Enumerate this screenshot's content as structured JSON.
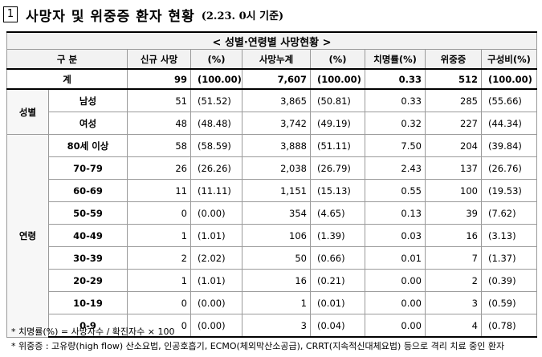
{
  "title": {
    "number": "1",
    "text": "사망자 및 위중증 환자 현황",
    "subtitle": "(2.23. 0시 기준)"
  },
  "table": {
    "caption": "< 성별·연령별 사망현황 >",
    "headers": [
      "구 분",
      "신규 사망",
      "(%)",
      "사망누계",
      "(%)",
      "치명률(%)",
      "위중증",
      "구성비(%)"
    ],
    "total": {
      "label": "계",
      "new_deaths": "99",
      "new_pct": "(100.00)",
      "cum_deaths": "7,607",
      "cum_pct": "(100.00)",
      "fatality": "0.33",
      "critical": "512",
      "composition": "(100.00)"
    },
    "groups": [
      {
        "category": "성별",
        "rows": [
          {
            "label": "남성",
            "new_deaths": "51",
            "new_pct": "(51.52)",
            "cum_deaths": "3,865",
            "cum_pct": "(50.81)",
            "fatality": "0.33",
            "critical": "285",
            "composition": "(55.66)"
          },
          {
            "label": "여성",
            "new_deaths": "48",
            "new_pct": "(48.48)",
            "cum_deaths": "3,742",
            "cum_pct": "(49.19)",
            "fatality": "0.32",
            "critical": "227",
            "composition": "(44.34)"
          }
        ]
      },
      {
        "category": "연령",
        "rows": [
          {
            "label": "80세 이상",
            "new_deaths": "58",
            "new_pct": "(58.59)",
            "cum_deaths": "3,888",
            "cum_pct": "(51.11)",
            "fatality": "7.50",
            "critical": "204",
            "composition": "(39.84)"
          },
          {
            "label": "70-79",
            "new_deaths": "26",
            "new_pct": "(26.26)",
            "cum_deaths": "2,038",
            "cum_pct": "(26.79)",
            "fatality": "2.43",
            "critical": "137",
            "composition": "(26.76)"
          },
          {
            "label": "60-69",
            "new_deaths": "11",
            "new_pct": "(11.11)",
            "cum_deaths": "1,151",
            "cum_pct": "(15.13)",
            "fatality": "0.55",
            "critical": "100",
            "composition": "(19.53)"
          },
          {
            "label": "50-59",
            "new_deaths": "0",
            "new_pct": "(0.00)",
            "cum_deaths": "354",
            "cum_pct": "(4.65)",
            "fatality": "0.13",
            "critical": "39",
            "composition": "(7.62)"
          },
          {
            "label": "40-49",
            "new_deaths": "1",
            "new_pct": "(1.01)",
            "cum_deaths": "106",
            "cum_pct": "(1.39)",
            "fatality": "0.03",
            "critical": "16",
            "composition": "(3.13)"
          },
          {
            "label": "30-39",
            "new_deaths": "2",
            "new_pct": "(2.02)",
            "cum_deaths": "50",
            "cum_pct": "(0.66)",
            "fatality": "0.01",
            "critical": "7",
            "composition": "(1.37)"
          },
          {
            "label": "20-29",
            "new_deaths": "1",
            "new_pct": "(1.01)",
            "cum_deaths": "16",
            "cum_pct": "(0.21)",
            "fatality": "0.00",
            "critical": "2",
            "composition": "(0.39)"
          },
          {
            "label": "10-19",
            "new_deaths": "0",
            "new_pct": "(0.00)",
            "cum_deaths": "1",
            "cum_pct": "(0.01)",
            "fatality": "0.00",
            "critical": "3",
            "composition": "(0.59)"
          },
          {
            "label": "0-9",
            "new_deaths": "0",
            "new_pct": "(0.00)",
            "cum_deaths": "3",
            "cum_pct": "(0.04)",
            "fatality": "0.00",
            "critical": "4",
            "composition": "(0.78)"
          }
        ]
      }
    ]
  },
  "footnotes": [
    "* 치명률(%) = 사망자수 / 확진자수 × 100",
    "* 위중증 : 고유량(high flow) 산소요법, 인공호흡기, ECMO(체외막산소공급), CRRT(지속적신대체요법) 등으로 격리 치료 중인 환자"
  ]
}
